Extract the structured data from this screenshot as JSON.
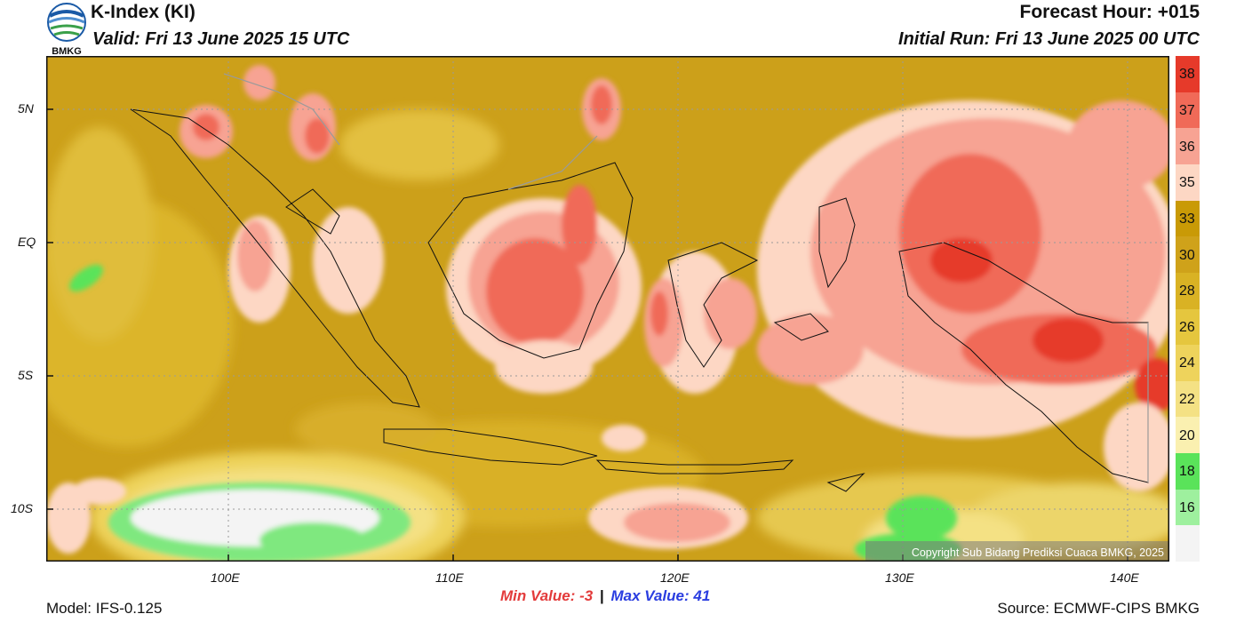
{
  "header": {
    "logo_text": "BMKG",
    "title": "K-Index (KI)",
    "valid": "Valid: Fri 13 June 2025 15 UTC",
    "forecast_hour": "Forecast Hour: +015",
    "initial_run": "Initial Run: Fri 13 June 2025 00 UTC"
  },
  "map": {
    "lat_labels": [
      "5N",
      "EQ",
      "5S",
      "10S"
    ],
    "lon_labels": [
      "100E",
      "110E",
      "120E",
      "130E",
      "140E"
    ],
    "copyright": "Copyright Sub Bidang Prediksi Cuaca BMKG, 2025"
  },
  "colorbar": {
    "levels": [
      "38",
      "37",
      "36",
      "35",
      "33",
      "30",
      "28",
      "26",
      "24",
      "22",
      "20",
      "18",
      "16"
    ],
    "colors": [
      "#e63a2a",
      "#f06a58",
      "#f7a393",
      "#fdd7c4",
      "#c99a06",
      "#cfa21a",
      "#d9b224",
      "#e5c63e",
      "#eed35c",
      "#f4e184",
      "#faf0b0",
      "#5ae35a",
      "#9ef09e",
      "#f4f4f4"
    ]
  },
  "footer": {
    "model": "Model: IFS-0.125",
    "min_label": "Min Value:",
    "min_value": "-3",
    "separator": "|",
    "max_label": "Max Value:",
    "max_value": "41",
    "source": "Source: ECMWF-CIPS BMKG"
  },
  "colors": {
    "min_value": "#e33b3b",
    "max_value": "#2a3de0",
    "field_base": "#cca01a"
  }
}
